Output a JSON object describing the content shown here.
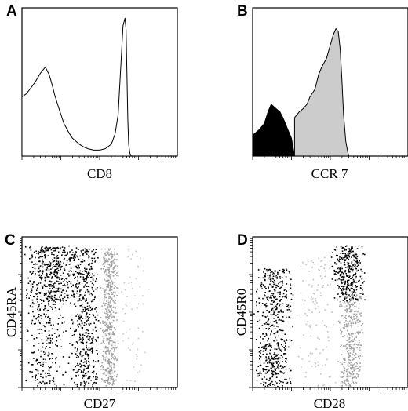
{
  "chart_data": [
    {
      "panel": "A",
      "type": "area",
      "xlabel": "CD8",
      "ylabel": "",
      "x_scale": "log",
      "xlim": [
        1,
        10000
      ],
      "ylim": [
        0,
        100
      ],
      "series": [
        {
          "fill": "#ffffff",
          "x": [
            1,
            1.3,
            1.7,
            2.2,
            3,
            4,
            5,
            6,
            7,
            9,
            12,
            16,
            20,
            30,
            40,
            50,
            70,
            100,
            140,
            200,
            250,
            300,
            350,
            400,
            450,
            480,
            500,
            530,
            560,
            600,
            650,
            700,
            800,
            1000,
            1500,
            3000,
            10000
          ],
          "y": [
            40,
            42,
            46,
            50,
            56,
            60,
            55,
            48,
            41,
            32,
            22,
            16,
            12,
            8,
            6,
            5,
            4,
            4,
            5,
            8,
            15,
            28,
            60,
            88,
            93,
            85,
            60,
            25,
            8,
            2,
            0,
            0,
            0,
            0,
            0,
            0,
            0
          ]
        }
      ]
    },
    {
      "panel": "B",
      "type": "area",
      "xlabel": "CCR 7",
      "ylabel": "",
      "x_scale": "log",
      "xlim": [
        1,
        10000
      ],
      "ylim": [
        0,
        100
      ],
      "series": [
        {
          "fill": "#000000",
          "x": [
            1,
            1.5,
            2,
            2.5,
            3,
            4,
            5,
            6,
            7,
            8,
            9,
            10,
            12
          ],
          "y": [
            14,
            18,
            22,
            30,
            35,
            32,
            30,
            26,
            22,
            18,
            15,
            12,
            0
          ]
        },
        {
          "fill": "#cccccc",
          "x": [
            12,
            14,
            16,
            20,
            25,
            30,
            40,
            50,
            60,
            80,
            100,
            120,
            140,
            160,
            180,
            200,
            220,
            250,
            280,
            300,
            350,
            400,
            600,
            1000,
            10000
          ],
          "y": [
            26,
            28,
            30,
            32,
            35,
            40,
            45,
            55,
            60,
            66,
            75,
            82,
            86,
            84,
            72,
            50,
            28,
            10,
            3,
            0,
            0,
            0,
            0,
            0,
            0
          ]
        }
      ]
    },
    {
      "panel": "C",
      "type": "scatter",
      "xlabel": "CD27",
      "ylabel": "CD45RA",
      "x_scale": "log",
      "y_scale": "log",
      "xlim": [
        1,
        10000
      ],
      "ylim": [
        1,
        10000
      ],
      "populations": [
        {
          "shade": "#000000",
          "x_range": [
            1,
            30
          ],
          "y_range": [
            200,
            6000
          ],
          "count": 420
        },
        {
          "shade": "#000000",
          "x_range": [
            15,
            100
          ],
          "y_range": [
            1,
            5000
          ],
          "count": 480
        },
        {
          "shade": "#000000",
          "x_range": [
            1,
            15
          ],
          "y_range": [
            1,
            200
          ],
          "count": 220
        },
        {
          "shade": "#a0a0a0",
          "x_range": [
            100,
            300
          ],
          "y_range": [
            1,
            5000
          ],
          "count": 520
        },
        {
          "shade": "#c8c8c8",
          "x_range": [
            300,
            2000
          ],
          "y_range": [
            1,
            5000
          ],
          "count": 60
        }
      ]
    },
    {
      "panel": "D",
      "type": "scatter",
      "xlabel": "CD28",
      "ylabel": "CD45R0",
      "x_scale": "log",
      "y_scale": "log",
      "xlim": [
        1,
        10000
      ],
      "ylim": [
        1,
        10000
      ],
      "populations": [
        {
          "shade": "#000000",
          "x_range": [
            1,
            12
          ],
          "y_range": [
            1,
            1500
          ],
          "count": 520
        },
        {
          "shade": "#000000",
          "x_range": [
            100,
            800
          ],
          "y_range": [
            200,
            6000
          ],
          "count": 320
        },
        {
          "shade": "#a0a0a0",
          "x_range": [
            150,
            700
          ],
          "y_range": [
            1,
            300
          ],
          "count": 360
        },
        {
          "shade": "#c0c0c0",
          "x_range": [
            12,
            150
          ],
          "y_range": [
            1,
            3000
          ],
          "count": 120
        }
      ]
    }
  ]
}
